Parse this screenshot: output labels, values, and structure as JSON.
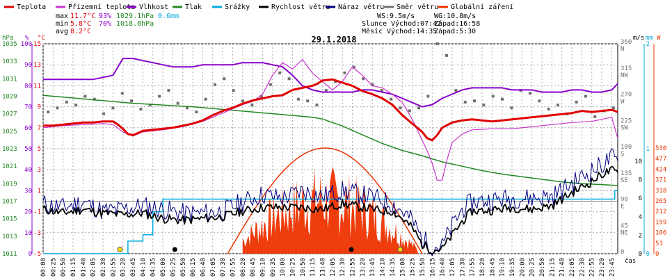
{
  "chart_data": {
    "type": "line",
    "title": "29.1.2018",
    "colors": {
      "teplota": "#e00000",
      "pocitova": "#cc33cc",
      "vlhkost": "#8800cc",
      "tlak": "#228822",
      "srazky": "#00aadd",
      "rychlost": "#000000",
      "naraz": "#000080",
      "smer": "#707070",
      "zareni": "#ee3300",
      "sun": "#ffdd00"
    },
    "legend": [
      {
        "key": "teplota",
        "label": "Teplota"
      },
      {
        "key": "pocitova",
        "label": "Přízemní teplota"
      },
      {
        "key": "vlhkost",
        "label": "Vlhkost"
      },
      {
        "key": "tlak",
        "label": "Tlak"
      },
      {
        "key": "srazky",
        "label": "Srážky"
      },
      {
        "key": "rychlost",
        "label": "Rychlost větru"
      },
      {
        "key": "naraz",
        "label": "Náraz větru"
      },
      {
        "key": "smer",
        "label": "Směr větru"
      },
      {
        "key": "zareni",
        "label": "Globální záření"
      }
    ],
    "stats": {
      "max": {
        "label": "max",
        "temp": "11.7°C",
        "hum": "93%",
        "press": "1029.1hPa",
        "rain": "0.6mm"
      },
      "min": {
        "label": "min",
        "temp": "5.8°C",
        "hum": "70%",
        "press": "1018.8hPa"
      },
      "avg": {
        "label": "avg",
        "temp": "8.2°C"
      }
    },
    "info": {
      "ws": "WS:9.5m/s",
      "wg": "WG:10.8m/s",
      "slunce_label": "Slunce",
      "slunce_vychod": "Východ:07:42",
      "slunce_zapad": "Západ:16:58",
      "mesic_label": "Měsíc",
      "mesic_vychod": "Východ:14:35",
      "mesic_zapad": "Západ:5:30"
    },
    "axis_units": {
      "press": "hPa",
      "hum": "%",
      "temp": "°C",
      "wind": "m/s",
      "rain": "mm",
      "rad": "W",
      "time": "čas"
    },
    "axis_ticks": {
      "press": [
        "1035",
        "1033",
        "1031",
        "1029",
        "1027",
        "1025",
        "1023",
        "1021",
        "1019",
        "1017",
        "1015",
        "1013",
        "1011"
      ],
      "hum": [
        "100",
        "90",
        "80",
        "70",
        "60",
        "50",
        "40",
        "30",
        "20",
        "10",
        "0"
      ],
      "temp": [
        "15",
        "13",
        "11",
        "9",
        "7",
        "5",
        "3",
        "1",
        "-1",
        "-3",
        "-5"
      ],
      "dir": [
        "360\nN",
        "315\nNW",
        "270\nW",
        "225\nSW",
        "180\nS",
        "135\nSE",
        "90\nE",
        "45\nNE",
        "0"
      ],
      "wind": [
        "10",
        "8",
        "6",
        "4",
        "2",
        "0"
      ],
      "rain": [
        "2",
        "1",
        "0"
      ],
      "rad": [
        "530",
        "477",
        "424",
        "371",
        "318",
        "265",
        "212",
        "159",
        "106",
        "53",
        "0"
      ],
      "x": [
        "00:00",
        "00:25",
        "00:50",
        "01:15",
        "01:40",
        "02:05",
        "02:30",
        "02:55",
        "03:20",
        "03:45",
        "04:10",
        "04:35",
        "05:00",
        "05:25",
        "05:50",
        "06:15",
        "06:40",
        "07:05",
        "07:30",
        "07:55",
        "08:20",
        "08:45",
        "09:10",
        "09:35",
        "10:00",
        "10:25",
        "10:50",
        "11:15",
        "11:40",
        "12:05",
        "12:30",
        "12:55",
        "13:20",
        "13:45",
        "14:10",
        "14:35",
        "15:00",
        "15:25",
        "15:50",
        "16:15",
        "16:40",
        "17:05",
        "17:30",
        "17:55",
        "18:20",
        "18:45",
        "19:10",
        "19:35",
        "20:00",
        "20:25",
        "20:50",
        "21:15",
        "21:40",
        "22:05",
        "22:30",
        "22:55",
        "23:20",
        "23:45"
      ]
    },
    "series_points": {
      "teplota": [
        [
          0,
          7.2
        ],
        [
          1,
          7.2
        ],
        [
          2,
          7.3
        ],
        [
          3,
          7.4
        ],
        [
          4,
          7.5
        ],
        [
          5,
          7.5
        ],
        [
          6,
          7.6
        ],
        [
          7,
          7.6
        ],
        [
          7.5,
          7.3
        ],
        [
          8,
          6.9
        ],
        [
          8.5,
          6.4
        ],
        [
          9,
          6.3
        ],
        [
          9.5,
          6.5
        ],
        [
          10,
          6.7
        ],
        [
          11,
          6.8
        ],
        [
          12,
          6.9
        ],
        [
          13,
          7.0
        ],
        [
          14,
          7.2
        ],
        [
          15,
          7.4
        ],
        [
          16,
          7.7
        ],
        [
          17,
          8.2
        ],
        [
          18,
          8.6
        ],
        [
          19,
          8.9
        ],
        [
          20,
          9.3
        ],
        [
          21,
          9.6
        ],
        [
          22,
          9.8
        ],
        [
          23,
          10.0
        ],
        [
          24,
          10.1
        ],
        [
          25,
          10.6
        ],
        [
          26,
          10.8
        ],
        [
          27,
          11.0
        ],
        [
          27.5,
          11.2
        ],
        [
          28,
          11.5
        ],
        [
          29,
          11.6
        ],
        [
          30,
          11.3
        ],
        [
          31,
          11.0
        ],
        [
          32,
          10.5
        ],
        [
          33,
          10.2
        ],
        [
          34,
          9.8
        ],
        [
          35,
          9.2
        ],
        [
          35.5,
          8.7
        ],
        [
          36,
          8.2
        ],
        [
          36.5,
          7.8
        ],
        [
          37,
          7.4
        ],
        [
          37.5,
          7.0
        ],
        [
          38,
          6.6
        ],
        [
          38.5,
          6.0
        ],
        [
          39,
          5.8
        ],
        [
          39.5,
          6.3
        ],
        [
          40,
          7.0
        ],
        [
          41,
          7.5
        ],
        [
          42,
          7.7
        ],
        [
          43,
          7.8
        ],
        [
          44,
          7.7
        ],
        [
          45,
          7.6
        ],
        [
          46,
          7.7
        ],
        [
          47,
          7.8
        ],
        [
          48,
          7.9
        ],
        [
          49,
          8.0
        ],
        [
          50,
          8.1
        ],
        [
          51,
          8.2
        ],
        [
          52,
          8.3
        ],
        [
          53,
          8.4
        ],
        [
          54,
          8.6
        ],
        [
          55,
          8.5
        ],
        [
          56,
          8.6
        ],
        [
          57,
          8.7
        ],
        [
          57.6,
          8.5
        ]
      ],
      "pocitova": [
        [
          0,
          7.0
        ],
        [
          2,
          7.2
        ],
        [
          4,
          7.3
        ],
        [
          6,
          7.4
        ],
        [
          7,
          7.3
        ],
        [
          8,
          6.6
        ],
        [
          9,
          6.2
        ],
        [
          10,
          6.6
        ],
        [
          12,
          6.8
        ],
        [
          14,
          7.1
        ],
        [
          16,
          7.6
        ],
        [
          17,
          8.0
        ],
        [
          18,
          8.4
        ],
        [
          19,
          8.8
        ],
        [
          20,
          9.2
        ],
        [
          21,
          9.5
        ],
        [
          22,
          10.2
        ],
        [
          23,
          12.0
        ],
        [
          24,
          13.2
        ],
        [
          25,
          12.6
        ],
        [
          26,
          13.5
        ],
        [
          27,
          12.2
        ],
        [
          28,
          11.4
        ],
        [
          29,
          10.6
        ],
        [
          30,
          11.4
        ],
        [
          31,
          12.8
        ],
        [
          32,
          12.0
        ],
        [
          33,
          11.0
        ],
        [
          34,
          10.8
        ],
        [
          35,
          10.2
        ],
        [
          36,
          9.4
        ],
        [
          36.5,
          8.6
        ],
        [
          37,
          7.8
        ],
        [
          37.5,
          6.8
        ],
        [
          38,
          5.8
        ],
        [
          38.5,
          4.8
        ],
        [
          39,
          3.6
        ],
        [
          39.5,
          2.0
        ],
        [
          40,
          2.0
        ],
        [
          40.5,
          4.0
        ],
        [
          41,
          5.6
        ],
        [
          42,
          6.4
        ],
        [
          43,
          6.8
        ],
        [
          45,
          6.9
        ],
        [
          47,
          6.9
        ],
        [
          49,
          7.1
        ],
        [
          51,
          7.3
        ],
        [
          53,
          7.5
        ],
        [
          55,
          7.6
        ],
        [
          56,
          7.8
        ],
        [
          57,
          8.0
        ],
        [
          57.6,
          6.0
        ]
      ],
      "vlhkost": [
        [
          0,
          83
        ],
        [
          4,
          83
        ],
        [
          5,
          83
        ],
        [
          6,
          84
        ],
        [
          7,
          85
        ],
        [
          8,
          93
        ],
        [
          9,
          93
        ],
        [
          10,
          92
        ],
        [
          11,
          91
        ],
        [
          12,
          90
        ],
        [
          13,
          89
        ],
        [
          14,
          89
        ],
        [
          15,
          89
        ],
        [
          16,
          90
        ],
        [
          17,
          90
        ],
        [
          18,
          90
        ],
        [
          19,
          90
        ],
        [
          20,
          91
        ],
        [
          21,
          91
        ],
        [
          22,
          91
        ],
        [
          23,
          90
        ],
        [
          24,
          89
        ],
        [
          25,
          85
        ],
        [
          26,
          80
        ],
        [
          27,
          78
        ],
        [
          28,
          77
        ],
        [
          29,
          77
        ],
        [
          30,
          77
        ],
        [
          31,
          77
        ],
        [
          32,
          78
        ],
        [
          33,
          78
        ],
        [
          34,
          77
        ],
        [
          35,
          76
        ],
        [
          36,
          74
        ],
        [
          37,
          72
        ],
        [
          38,
          70
        ],
        [
          39,
          71
        ],
        [
          40,
          74
        ],
        [
          41,
          76
        ],
        [
          42,
          78
        ],
        [
          43,
          79
        ],
        [
          44,
          79
        ],
        [
          45,
          79
        ],
        [
          46,
          79
        ],
        [
          47,
          78
        ],
        [
          48,
          78
        ],
        [
          49,
          78
        ],
        [
          50,
          77
        ],
        [
          51,
          77
        ],
        [
          52,
          77
        ],
        [
          53,
          78
        ],
        [
          54,
          78
        ],
        [
          55,
          77
        ],
        [
          56,
          77
        ],
        [
          57,
          78
        ],
        [
          57.6,
          81
        ]
      ],
      "tlak": [
        [
          0,
          1029.1
        ],
        [
          3,
          1028.8
        ],
        [
          6,
          1028.5
        ],
        [
          9,
          1028.2
        ],
        [
          12,
          1028.0
        ],
        [
          15,
          1027.8
        ],
        [
          18,
          1027.5
        ],
        [
          21,
          1027.2
        ],
        [
          24,
          1026.9
        ],
        [
          26,
          1026.7
        ],
        [
          27,
          1026.6
        ],
        [
          28,
          1026.4
        ],
        [
          29,
          1026.0
        ],
        [
          30,
          1025.6
        ],
        [
          31,
          1025.1
        ],
        [
          32,
          1024.6
        ],
        [
          34,
          1023.6
        ],
        [
          36,
          1022.8
        ],
        [
          38,
          1022.2
        ],
        [
          40,
          1021.5
        ],
        [
          42,
          1021.0
        ],
        [
          44,
          1020.5
        ],
        [
          46,
          1020.1
        ],
        [
          48,
          1019.8
        ],
        [
          50,
          1019.5
        ],
        [
          52,
          1019.2
        ],
        [
          54,
          1019.0
        ],
        [
          56,
          1018.9
        ],
        [
          57.6,
          1018.8
        ]
      ],
      "srazky": [
        [
          0,
          0
        ],
        [
          8.5,
          0
        ],
        [
          8.5,
          0.12
        ],
        [
          10,
          0.12
        ],
        [
          10,
          0.18
        ],
        [
          11,
          0.18
        ],
        [
          11,
          0.4
        ],
        [
          12,
          0.4
        ],
        [
          12,
          0.52
        ],
        [
          13,
          0.52
        ],
        [
          57.3,
          0.52
        ],
        [
          57.3,
          0.6
        ],
        [
          57.6,
          0.6
        ]
      ],
      "rychlost": [
        [
          0,
          4.8
        ],
        [
          2,
          4.4
        ],
        [
          4,
          4.8
        ],
        [
          6,
          4.4
        ],
        [
          8,
          4.2
        ],
        [
          10,
          4.4
        ],
        [
          12,
          3.8
        ],
        [
          14,
          3.6
        ],
        [
          16,
          3.8
        ],
        [
          18,
          4.0
        ],
        [
          20,
          4.6
        ],
        [
          22,
          5.0
        ],
        [
          24,
          5.0
        ],
        [
          26,
          5.0
        ],
        [
          28,
          4.8
        ],
        [
          30,
          5.4
        ],
        [
          32,
          5.0
        ],
        [
          34,
          4.6
        ],
        [
          35,
          4.6
        ],
        [
          36,
          3.8
        ],
        [
          37,
          2.8
        ],
        [
          38,
          1.0
        ],
        [
          39,
          0.4
        ],
        [
          40,
          0.5
        ],
        [
          41,
          2.0
        ],
        [
          42,
          3.5
        ],
        [
          43,
          4.6
        ],
        [
          45,
          4.7
        ],
        [
          47,
          5.0
        ],
        [
          49,
          4.8
        ],
        [
          51,
          5.2
        ],
        [
          53,
          6.6
        ],
        [
          55,
          7.8
        ],
        [
          56,
          8.6
        ],
        [
          57,
          9.0
        ],
        [
          57.6,
          8.8
        ]
      ],
      "naraz": [
        [
          0,
          5.4
        ],
        [
          2,
          5.0
        ],
        [
          4,
          5.6
        ],
        [
          6,
          4.6
        ],
        [
          8,
          4.8
        ],
        [
          10,
          5.2
        ],
        [
          12,
          4.8
        ],
        [
          14,
          4.4
        ],
        [
          16,
          4.4
        ],
        [
          18,
          4.6
        ],
        [
          20,
          5.6
        ],
        [
          22,
          6.4
        ],
        [
          24,
          6.0
        ],
        [
          26,
          6.8
        ],
        [
          28,
          6.2
        ],
        [
          30,
          6.8
        ],
        [
          32,
          6.4
        ],
        [
          34,
          5.8
        ],
        [
          35,
          5.4
        ],
        [
          36,
          4.6
        ],
        [
          37,
          3.6
        ],
        [
          38,
          1.6
        ],
        [
          39,
          0.8
        ],
        [
          40,
          0.8
        ],
        [
          41,
          3.0
        ],
        [
          42,
          4.8
        ],
        [
          43,
          5.6
        ],
        [
          45,
          5.8
        ],
        [
          47,
          6.0
        ],
        [
          49,
          6.0
        ],
        [
          51,
          6.2
        ],
        [
          53,
          7.6
        ],
        [
          55,
          9.0
        ],
        [
          56,
          9.6
        ],
        [
          57,
          10.4
        ],
        [
          57.6,
          10.0
        ]
      ],
      "smer_values": [
        243,
        250,
        260,
        255,
        270,
        265,
        240,
        250,
        275,
        262,
        248,
        255,
        270,
        280,
        258,
        250,
        243,
        265,
        290,
        300,
        280,
        262,
        255,
        270,
        290,
        310,
        300,
        265,
        262,
        255,
        280,
        295,
        310,
        320,
        300,
        290,
        280,
        265,
        250,
        245,
        250,
        270,
        360,
        340,
        280,
        260,
        262,
        255,
        270,
        265,
        250,
        280,
        275,
        262,
        248,
        255,
        240,
        260,
        270,
        235,
        245,
        250
      ]
    },
    "radiation": {
      "start": 18.5,
      "end": 38.0,
      "peak": 530
    }
  }
}
